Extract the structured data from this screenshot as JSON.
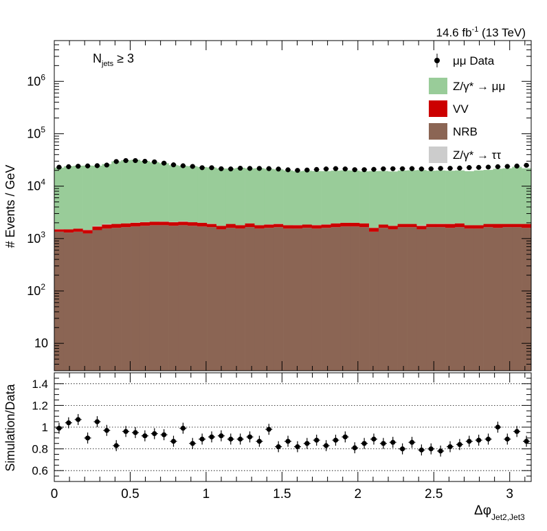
{
  "header": {
    "lumi_prefix": "14.6 fb",
    "lumi_sup": "-1",
    "lumi_suffix": " (13 TeV)"
  },
  "selection": {
    "main": "N",
    "sub": "jets",
    "rest": " ≥ 3"
  },
  "axes": {
    "top_ylabel": "# Events / GeV",
    "bottom_ylabel": "Simulation/Data",
    "xlabel_main": "Δφ",
    "xlabel_sub": "Jet2,Jet3",
    "x_ticks": [
      "0",
      "0.5",
      "1",
      "1.5",
      "2",
      "2.5",
      "3"
    ],
    "top_y_ticks": [
      {
        "base": "10",
        "exp": ""
      },
      {
        "base": "10",
        "exp": "2"
      },
      {
        "base": "10",
        "exp": "3"
      },
      {
        "base": "10",
        "exp": "4"
      },
      {
        "base": "10",
        "exp": "5"
      },
      {
        "base": "10",
        "exp": "6"
      }
    ],
    "ratio_ticks": [
      "0.6",
      "0.8",
      "1",
      "1.2",
      "1.4"
    ]
  },
  "legend": [
    {
      "key": "data",
      "label": "μμ Data",
      "color": "#000000"
    },
    {
      "key": "dy_mumu",
      "label": "Z/γ* → μμ",
      "color": "#99cc99"
    },
    {
      "key": "vv",
      "label": "VV",
      "color": "#cc0000"
    },
    {
      "key": "nrb",
      "label": "NRB",
      "color": "#8b6554"
    },
    {
      "key": "dy_tautau",
      "label": "Z/γ* → ττ",
      "color": "#cccccc"
    }
  ],
  "chart_data": {
    "type": "bar",
    "stacked": true,
    "ylog": true,
    "x_range": [
      0,
      3.1416
    ],
    "top_ylim": [
      3,
      6000000
    ],
    "ratio_ylim": [
      0.5,
      1.5
    ],
    "n_bins": 50,
    "series": [
      {
        "name": "NRB",
        "values": [
          1350,
          1300,
          1350,
          1250,
          1450,
          1550,
          1600,
          1650,
          1700,
          1750,
          1800,
          1800,
          1750,
          1800,
          1750,
          1700,
          1650,
          1500,
          1600,
          1550,
          1650,
          1550,
          1600,
          1650,
          1550,
          1550,
          1600,
          1550,
          1600,
          1650,
          1700,
          1700,
          1650,
          1350,
          1600,
          1500,
          1650,
          1650,
          1500,
          1650,
          1650,
          1600,
          1650,
          1550,
          1550,
          1650,
          1600,
          1650,
          1650,
          1600
        ]
      },
      {
        "name": "VV",
        "values": [
          150,
          200,
          200,
          200,
          250,
          300,
          300,
          300,
          300,
          300,
          300,
          300,
          300,
          300,
          300,
          300,
          250,
          250,
          300,
          250,
          300,
          250,
          250,
          250,
          250,
          250,
          250,
          250,
          250,
          300,
          300,
          300,
          300,
          250,
          250,
          250,
          250,
          250,
          250,
          250,
          250,
          300,
          300,
          250,
          250,
          250,
          300,
          250,
          250,
          300
        ]
      },
      {
        "name": "Z/γ* → ττ",
        "values": [
          15,
          0,
          0,
          22,
          36,
          47,
          0,
          0,
          16,
          16,
          0,
          17,
          15,
          32,
          0,
          0,
          17,
          0,
          0,
          0,
          0,
          0,
          25,
          20,
          0,
          15,
          0,
          16,
          22,
          0,
          0,
          0,
          0,
          0,
          0,
          0,
          0,
          0,
          33,
          15,
          25,
          15,
          0,
          0,
          0,
          0,
          0,
          0,
          0,
          0
        ]
      },
      {
        "name": "Z/γ* → μμ",
        "values": [
          21000,
          22500,
          23000,
          23200,
          22800,
          24500,
          27800,
          29200,
          29800,
          28000,
          26500,
          25200,
          23000,
          22200,
          22000,
          21200,
          20800,
          20000,
          19800,
          20600,
          19800,
          20200,
          19500,
          19000,
          18200,
          17500,
          17800,
          17600,
          17500,
          17800,
          18000,
          17800,
          17200,
          17800,
          17600,
          17300,
          18000,
          18200,
          18500,
          17800,
          18000,
          17800,
          18000,
          17500,
          18200,
          18500,
          19500,
          20000,
          21500,
          20000
        ]
      }
    ],
    "data": [
      23000,
      23500,
      24000,
      24300,
      24600,
      25300,
      29500,
      30800,
      30800,
      29800,
      29100,
      27500,
      25500,
      24500,
      23800,
      22500,
      22500,
      21500,
      21300,
      22000,
      21800,
      21800,
      21600,
      21200,
      20500,
      20000,
      20300,
      20800,
      21300,
      21600,
      21300,
      20600,
      20600,
      20900,
      21400,
      21500,
      21500,
      21600,
      21300,
      21400,
      21800,
      21900,
      22100,
      22600,
      22800,
      23100,
      23500,
      23800,
      24200,
      25000
    ],
    "ratio": [
      0.99,
      1.04,
      1.07,
      0.9,
      1.05,
      0.97,
      0.83,
      0.96,
      0.95,
      0.92,
      0.94,
      0.93,
      0.87,
      0.99,
      0.85,
      0.89,
      0.91,
      0.92,
      0.89,
      0.89,
      0.91,
      0.87,
      0.98,
      0.82,
      0.87,
      0.82,
      0.85,
      0.88,
      0.83,
      0.88,
      0.91,
      0.81,
      0.85,
      0.89,
      0.85,
      0.86,
      0.8,
      0.86,
      0.79,
      0.8,
      0.78,
      0.82,
      0.84,
      0.87,
      0.88,
      0.89,
      1.0,
      0.89,
      0.96,
      0.87
    ]
  }
}
